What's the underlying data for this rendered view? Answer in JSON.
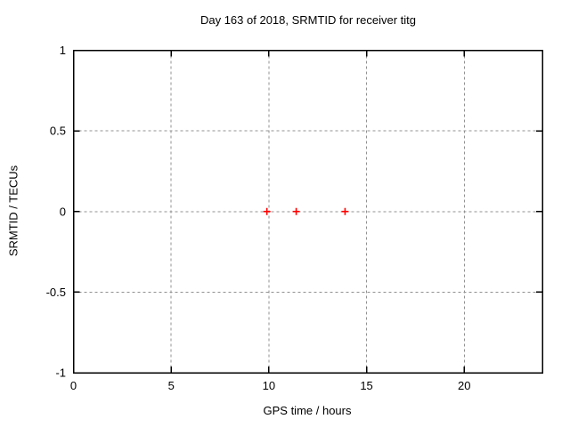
{
  "title": "Day 163 of 2018, SRMTID for receiver titg",
  "chart_data": {
    "type": "scatter",
    "title": "Day 163 of 2018, SRMTID for receiver titg",
    "xlabel": "GPS time / hours",
    "ylabel": "SRMTID / TECUs",
    "xlim": [
      0,
      24
    ],
    "ylim": [
      -1,
      1
    ],
    "xticks": [
      0,
      5,
      10,
      15,
      20
    ],
    "xtick_labels": [
      "0",
      "5",
      "10",
      "15",
      "20"
    ],
    "yticks": [
      -1,
      -0.5,
      0,
      0.5,
      1
    ],
    "ytick_labels": [
      "-1",
      "-0.5",
      "0",
      "0.5",
      "1"
    ],
    "grid": true,
    "legend": "none",
    "series": [
      {
        "name": "SRMTID",
        "marker": "plus",
        "color": "#ff0000",
        "points": [
          [
            9.9,
            0.0
          ],
          [
            11.4,
            0.0
          ],
          [
            13.9,
            0.0
          ]
        ]
      }
    ]
  },
  "colors": {
    "background": "#ffffff",
    "border": "#000000",
    "grid": "#909090",
    "marker": "#ff0000",
    "text": "#000000"
  }
}
